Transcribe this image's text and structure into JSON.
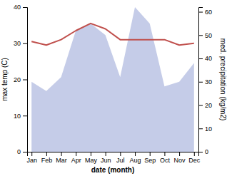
{
  "chart_data": {
    "type": "line",
    "xlabel": "date (month)",
    "ylabel": "max temp (C)",
    "y2label": "med. precipitation (kg/m2)",
    "categories": [
      "Jan",
      "Feb",
      "Mar",
      "Apr",
      "May",
      "Jun",
      "Jul",
      "Aug",
      "Sep",
      "Oct",
      "Nov",
      "Dec"
    ],
    "series": [
      {
        "type": "area",
        "axis": "y2",
        "color": "#c5cce8",
        "values": [
          30,
          26,
          32,
          52,
          55,
          50,
          32,
          62,
          55,
          28,
          30,
          38
        ]
      },
      {
        "type": "line",
        "color": "#c0504d",
        "values": [
          30.5,
          29.5,
          31.0,
          33.5,
          35.5,
          34.0,
          31.0,
          31.0,
          31.0,
          31.0,
          29.5,
          30.0
        ]
      }
    ],
    "ylim": [
      0,
      40
    ],
    "yticks": [
      0,
      10,
      20,
      30,
      40
    ],
    "y2lim": [
      0,
      62
    ],
    "y2ticks": [
      0,
      10,
      20,
      30,
      40,
      50,
      60
    ],
    "grid": false
  }
}
